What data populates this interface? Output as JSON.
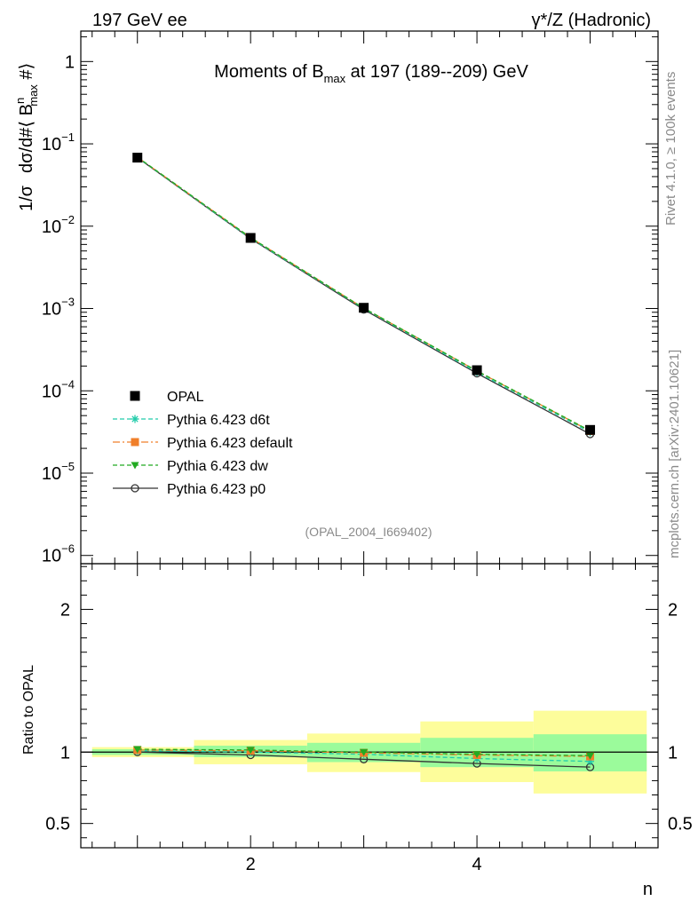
{
  "header": {
    "left": "197 GeV ee",
    "right": "γ*/Z (Hadronic)"
  },
  "side_labels": {
    "rivet": "Rivet 4.1.0, ≥ 100k events",
    "mcplots": "mcplots.cern.ch [arXiv:2401.10621]"
  },
  "chart_data": [
    {
      "type": "line",
      "panel": "main",
      "title": "Moments of B_max at 197 (189--209) GeV",
      "title_parts": {
        "pre": "Moments of B",
        "sub": "max",
        "post": " at 197 (189--209) GeV"
      },
      "ylabel": "1/σ  dσ/d#⟨ B^n_max #⟩",
      "ylabel_parts": {
        "a": "1/σ",
        "b": "dσ/d#⟨ B",
        "sup": "n",
        "sub": "max",
        "c": " #⟩"
      },
      "yscale": "log",
      "xlim": [
        0.5,
        5.6
      ],
      "ylim": [
        1e-06,
        2.3
      ],
      "ytick_labels": [
        {
          "base": "10",
          "exp": "−6",
          "value": 1e-06
        },
        {
          "base": "10",
          "exp": "−5",
          "value": 1e-05
        },
        {
          "base": "10",
          "exp": "−4",
          "value": 0.0001
        },
        {
          "base": "10",
          "exp": "−3",
          "value": 0.001
        },
        {
          "base": "10",
          "exp": "−2",
          "value": 0.01
        },
        {
          "base": "10",
          "exp": "−1",
          "value": 0.1
        },
        {
          "base": "1",
          "exp": "",
          "value": 1
        }
      ],
      "watermark": "(OPAL_2004_I669402)",
      "x": [
        1,
        2,
        3,
        4,
        5
      ],
      "series": [
        {
          "name": "OPAL",
          "style": "data",
          "color": "#000000",
          "marker": "square",
          "values": [
            0.068,
            0.0072,
            0.00102,
            0.000178,
            3.35e-05
          ]
        },
        {
          "name": "Pythia 6.423 d6t",
          "style": "dashed",
          "color": "#22ccaa",
          "marker": "star",
          "values": [
            0.0685,
            0.0071,
            0.000998,
            0.000168,
            3.15e-05
          ]
        },
        {
          "name": "Pythia 6.423 default",
          "style": "dashdot",
          "color": "#f07f2a",
          "marker": "square",
          "values": [
            0.0688,
            0.00725,
            0.00101,
            0.000174,
            3.25e-05
          ]
        },
        {
          "name": "Pythia 6.423 dw",
          "style": "dashed",
          "color": "#22aa22",
          "marker": "triangle-down",
          "values": [
            0.069,
            0.00727,
            0.00101,
            0.000175,
            3.27e-05
          ]
        },
        {
          "name": "Pythia 6.423 p0",
          "style": "solid",
          "color": "#333333",
          "marker": "circle",
          "values": [
            0.068,
            0.00705,
            0.00097,
            0.000163,
            2.98e-05
          ]
        }
      ]
    },
    {
      "type": "line",
      "panel": "ratio",
      "ylabel": "Ratio to OPAL",
      "xlabel": "n",
      "xlim": [
        0.5,
        5.6
      ],
      "ylim": [
        0.35,
        2.3
      ],
      "ytick_labels": [
        {
          "text": "0.5",
          "value": 0.5
        },
        {
          "text": "1",
          "value": 1
        },
        {
          "text": "2",
          "value": 2
        }
      ],
      "xtick_labels": [
        {
          "text": "2",
          "value": 2
        },
        {
          "text": "4",
          "value": 4
        }
      ],
      "bins": [
        {
          "lo": 0.6,
          "hi": 1.5,
          "inner": [
            0.98,
            1.02
          ],
          "outer": [
            0.965,
            1.035
          ]
        },
        {
          "lo": 1.5,
          "hi": 2.5,
          "inner": [
            0.965,
            1.045
          ],
          "outer": [
            0.915,
            1.085
          ]
        },
        {
          "lo": 2.5,
          "hi": 3.5,
          "inner": [
            0.93,
            1.065
          ],
          "outer": [
            0.86,
            1.13
          ]
        },
        {
          "lo": 3.5,
          "hi": 4.5,
          "inner": [
            0.895,
            1.1
          ],
          "outer": [
            0.79,
            1.215
          ]
        },
        {
          "lo": 4.5,
          "hi": 5.5,
          "inner": [
            0.865,
            1.125
          ],
          "outer": [
            0.71,
            1.29
          ]
        }
      ],
      "x": [
        1,
        2,
        3,
        4,
        5
      ],
      "series": [
        {
          "name": "Pythia 6.423 d6t",
          "color": "#22ccaa",
          "marker": "star",
          "style": "dashed",
          "values": [
            1.01,
            1.0,
            0.985,
            0.955,
            0.935
          ]
        },
        {
          "name": "Pythia 6.423 default",
          "color": "#f07f2a",
          "marker": "square",
          "style": "dashdot",
          "values": [
            1.015,
            1.01,
            0.995,
            0.98,
            0.97
          ]
        },
        {
          "name": "Pythia 6.423 dw",
          "color": "#22aa22",
          "marker": "triangle-down",
          "style": "dashed",
          "values": [
            1.02,
            1.015,
            1.0,
            0.985,
            0.975
          ]
        },
        {
          "name": "Pythia 6.423 p0",
          "color": "#333333",
          "marker": "circle",
          "style": "solid",
          "values": [
            1.0,
            0.98,
            0.95,
            0.92,
            0.895
          ]
        }
      ]
    }
  ]
}
